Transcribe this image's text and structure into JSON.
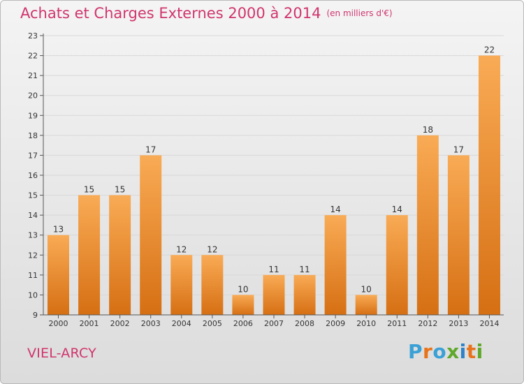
{
  "title": "Achats et Charges Externes 2000 à 2014",
  "subtitle": "(en milliers d'€)",
  "town": "VIEL-ARCY",
  "brand": {
    "text": "Proxiti",
    "letter_colors": [
      "#3aa0d6",
      "#e8731a",
      "#3aa0d6",
      "#5fa82b",
      "#2f82c8",
      "#e8731a",
      "#5fa82b"
    ]
  },
  "colors": {
    "title": "#d0356d",
    "bar_light": "#f9ab55",
    "bar_dark": "#d66f13",
    "grid": "#d8d8d8",
    "text": "#333333"
  },
  "chart_data": {
    "type": "bar",
    "categories": [
      "2000",
      "2001",
      "2002",
      "2003",
      "2004",
      "2005",
      "2006",
      "2007",
      "2008",
      "2009",
      "2010",
      "2011",
      "2012",
      "2013",
      "2014"
    ],
    "values": [
      13,
      15,
      15,
      17,
      12,
      12,
      10,
      11,
      11,
      14,
      10,
      14,
      18,
      17,
      22
    ],
    "data_labels": [
      "13",
      "15",
      "15",
      "17",
      "12",
      "12",
      "10",
      "11",
      "11",
      "14",
      "10",
      "14",
      "18",
      "17",
      "22"
    ],
    "yticks": [
      9,
      10,
      11,
      12,
      13,
      14,
      15,
      16,
      17,
      18,
      19,
      20,
      21,
      22,
      23
    ],
    "ylim": [
      9,
      23
    ],
    "grid": true,
    "title": "Achats et Charges Externes 2000 à 2014",
    "xlabel": "",
    "ylabel": ""
  }
}
